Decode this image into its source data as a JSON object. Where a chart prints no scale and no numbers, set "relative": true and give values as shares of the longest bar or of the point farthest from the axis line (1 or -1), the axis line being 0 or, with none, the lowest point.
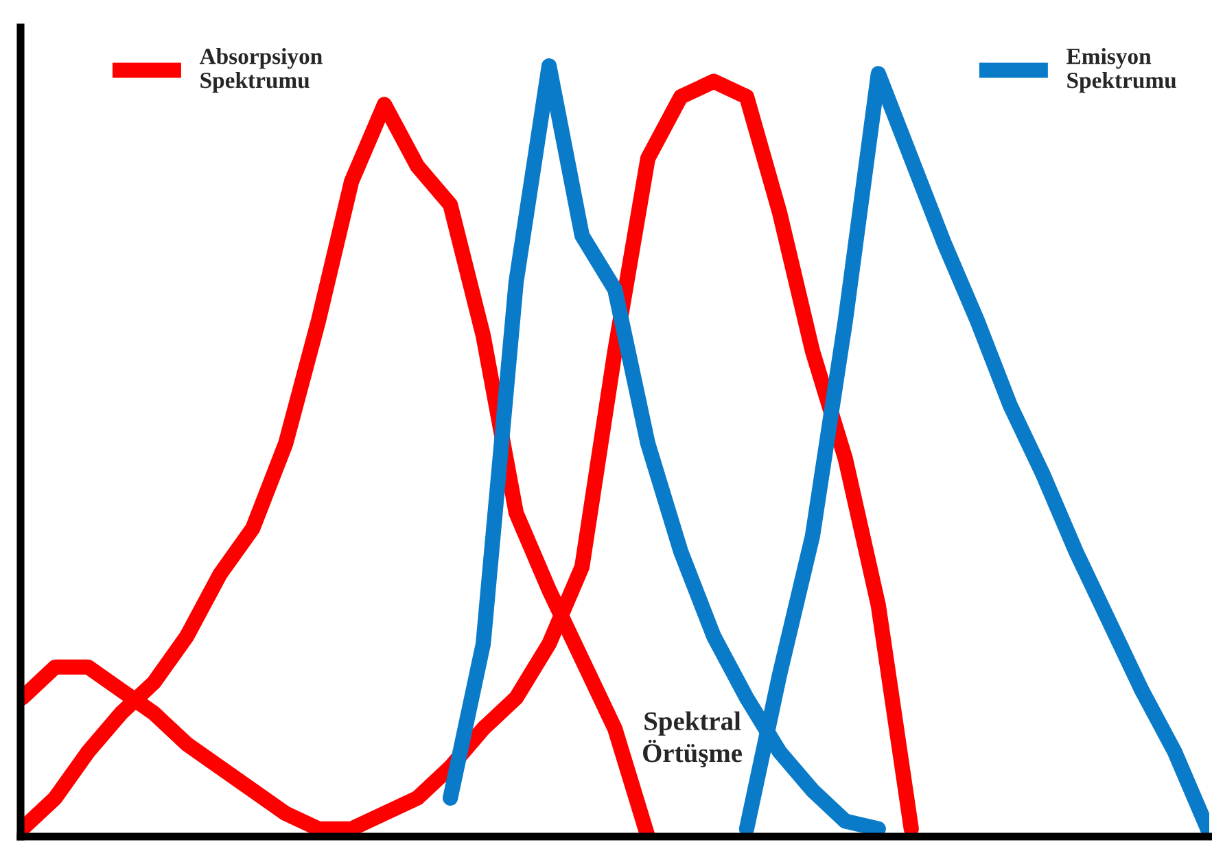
{
  "chart_data": {
    "type": "line",
    "relative": true,
    "legend": "top",
    "line_style": "solid",
    "marker": "none",
    "grid": false,
    "categories": [
      null,
      null,
      null,
      null,
      null,
      null,
      null,
      null,
      null,
      null,
      null,
      null,
      null,
      null,
      null,
      null,
      null,
      null,
      null,
      null,
      null,
      null,
      null,
      null,
      null,
      null,
      null,
      null,
      null,
      null,
      null,
      null,
      null,
      null,
      null,
      null,
      null
    ],
    "series": [
      {
        "color": "#ff0000",
        "values": [
          0.18,
          0.22,
          0.22,
          0.19,
          0.16,
          0.12,
          0.09,
          0.06,
          0.03,
          0.01,
          0.01,
          0.03,
          0.05,
          0.09,
          0.14,
          0.18,
          0.25,
          0.35,
          0.63,
          0.88,
          0.96,
          0.98,
          0.96,
          0.81,
          0.63,
          0.49,
          0.3,
          0.01,
          null,
          null,
          null,
          null,
          null,
          null,
          null,
          null,
          null
        ]
      },
      {
        "name": "Absorpsiyon\nSpektrumu",
        "color": "#ff0000",
        "values": [
          0.01,
          0.05,
          0.11,
          0.16,
          0.2,
          0.26,
          0.34,
          0.4,
          0.51,
          0.67,
          0.85,
          0.95,
          0.87,
          0.82,
          0.65,
          0.42,
          0.32,
          0.23,
          0.14,
          0.0,
          null,
          null,
          null,
          null,
          null,
          null,
          null,
          null,
          null,
          null,
          null,
          null,
          null,
          null,
          null,
          null,
          null
        ]
      },
      {
        "color": "#0a7bc8",
        "values": [
          null,
          null,
          null,
          null,
          null,
          null,
          null,
          null,
          null,
          null,
          null,
          null,
          null,
          0.05,
          0.25,
          0.72,
          1.0,
          0.78,
          0.71,
          0.51,
          0.37,
          0.26,
          0.18,
          0.11,
          0.06,
          0.02,
          0.01,
          null,
          null,
          null,
          null,
          null,
          null,
          null,
          null,
          null,
          null
        ]
      },
      {
        "name": "Emisyon\nSpektrumu",
        "color": "#0a7bc8",
        "values": [
          null,
          null,
          null,
          null,
          null,
          null,
          null,
          null,
          null,
          null,
          null,
          null,
          null,
          null,
          null,
          null,
          null,
          null,
          null,
          null,
          null,
          null,
          0.01,
          0.21,
          0.39,
          0.67,
          0.99,
          0.88,
          0.77,
          0.67,
          0.56,
          0.47,
          0.37,
          0.28,
          0.19,
          0.11,
          0.01
        ]
      }
    ],
    "annotations": [
      "Spektral\nÖrtüşme"
    ]
  }
}
